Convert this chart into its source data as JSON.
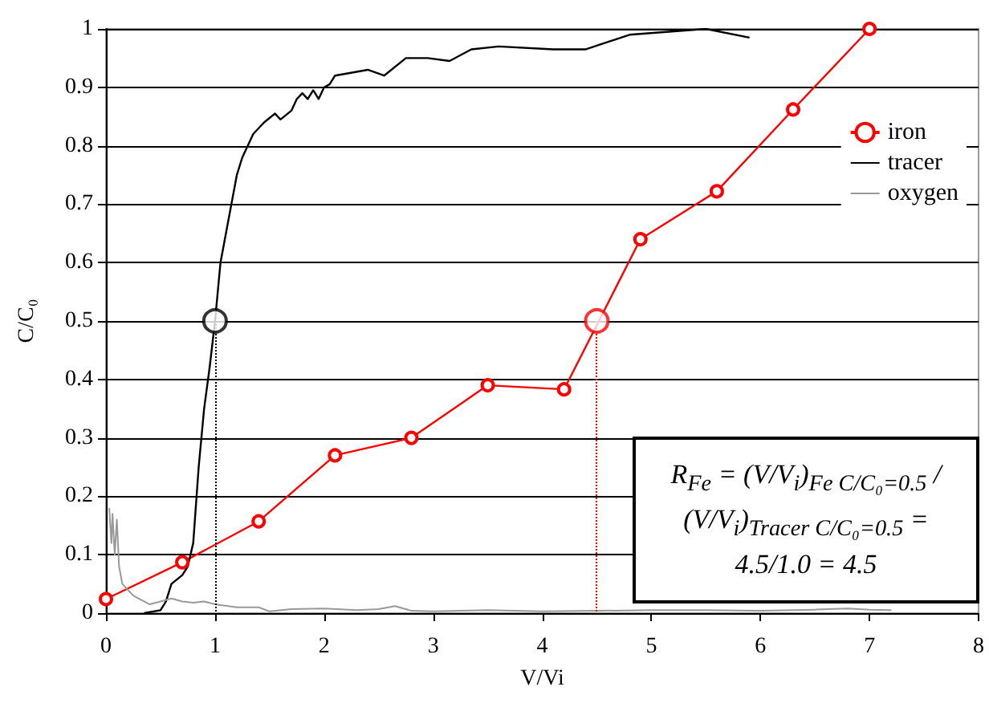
{
  "chart_data": {
    "type": "line",
    "xlabel": "V/Vi",
    "ylabel": "C/C₀",
    "xlim": [
      0,
      8
    ],
    "xticks": [
      0,
      1,
      2,
      3,
      4,
      5,
      6,
      7,
      8
    ],
    "ylim": [
      0,
      1
    ],
    "yticks": [
      0,
      0.1,
      0.2,
      0.3,
      0.4,
      0.5,
      0.6,
      0.7,
      0.8,
      0.9,
      1
    ],
    "grid": "y",
    "legend": "top right",
    "series": [
      {
        "name": "iron",
        "color": "#ff0000",
        "marker": "circle",
        "x": [
          0,
          0.7,
          1.4,
          2.1,
          2.8,
          3.5,
          4.2,
          4.9,
          5.6,
          6.3,
          7.0
        ],
        "values": [
          0.024,
          0.087,
          0.157,
          0.27,
          0.3,
          0.39,
          0.383,
          0.64,
          0.722,
          0.862,
          1.0
        ]
      },
      {
        "name": "tracer",
        "color": "#000000",
        "marker": "none",
        "x": [
          0.35,
          0.5,
          0.55,
          0.6,
          0.7,
          0.75,
          0.8,
          0.85,
          0.9,
          0.95,
          1.0,
          1.05,
          1.1,
          1.15,
          1.2,
          1.25,
          1.3,
          1.35,
          1.45,
          1.55,
          1.6,
          1.7,
          1.75,
          1.8,
          1.85,
          1.9,
          1.95,
          2.0,
          2.05,
          2.1,
          2.4,
          2.55,
          2.75,
          2.95,
          3.15,
          3.35,
          3.6,
          4.1,
          4.4,
          4.8,
          5.5,
          5.9
        ],
        "values": [
          0,
          0.005,
          0.02,
          0.05,
          0.065,
          0.08,
          0.12,
          0.25,
          0.35,
          0.42,
          0.5,
          0.6,
          0.65,
          0.7,
          0.75,
          0.78,
          0.8,
          0.82,
          0.84,
          0.855,
          0.845,
          0.86,
          0.88,
          0.89,
          0.88,
          0.895,
          0.88,
          0.9,
          0.905,
          0.92,
          0.93,
          0.92,
          0.95,
          0.95,
          0.945,
          0.965,
          0.97,
          0.965,
          0.965,
          0.99,
          1.0,
          0.985
        ]
      },
      {
        "name": "oxygen",
        "color": "#999999",
        "marker": "none",
        "x": [
          0.03,
          0.05,
          0.06,
          0.08,
          0.1,
          0.12,
          0.15,
          0.2,
          0.25,
          0.3,
          0.35,
          0.4,
          0.5,
          0.6,
          0.7,
          0.8,
          0.9,
          1.0,
          1.2,
          1.4,
          1.5,
          1.7,
          2.0,
          2.3,
          2.5,
          2.65,
          2.8,
          3.0,
          3.5,
          4.0,
          4.5,
          5.0,
          5.5,
          6.0,
          6.5,
          6.8,
          7.0,
          7.2
        ],
        "values": [
          0.18,
          0.12,
          0.17,
          0.1,
          0.16,
          0.08,
          0.05,
          0.04,
          0.03,
          0.025,
          0.02,
          0.015,
          0.02,
          0.025,
          0.02,
          0.018,
          0.02,
          0.015,
          0.01,
          0.01,
          0.003,
          0.007,
          0.008,
          0.005,
          0.007,
          0.012,
          0.004,
          0.003,
          0.005,
          0.003,
          0.004,
          0.005,
          0.005,
          0.004,
          0.006,
          0.008,
          0.006,
          0.005
        ]
      },
      {
        "type": "scatter",
        "color": "#000000",
        "marker": "circle",
        "x": [
          1
        ],
        "values": [
          0.5
        ]
      },
      {
        "type": "scatter",
        "color": "#ff0000",
        "marker": "circle",
        "x": [
          4.5
        ],
        "values": [
          0.5
        ]
      }
    ],
    "ref_lines": [
      {
        "axis": "x",
        "value": 1,
        "color": "#000000",
        "line_style": "dotted"
      },
      {
        "axis": "x",
        "value": 4.5,
        "color": "#ff0000",
        "line_style": "dotted"
      }
    ],
    "annotations": [
      "R$_{Fe}$ = (V/V$_{i}$)$_{Fe C/C₀=0.5}$ / (V/V$_{i}$)$_{Tracer C/C₀=0.5}$ = 4.5/1.0 = 4.5"
    ]
  }
}
